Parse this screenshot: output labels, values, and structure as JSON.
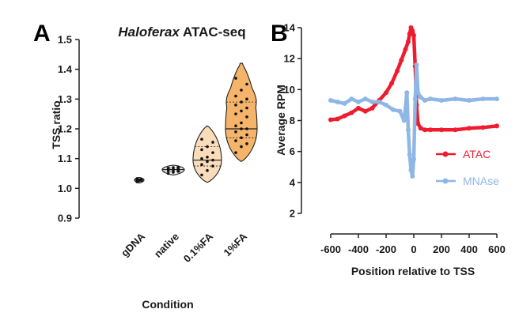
{
  "chart_data": [
    {
      "panel": "A",
      "type": "violin",
      "title": "Haloferax ATAC-seq",
      "title_italic_part": "Haloferax",
      "title_rest": " ATAC-seq",
      "xlabel": "Condition",
      "ylabel": "TSS ratio",
      "ylim": [
        0.9,
        1.5
      ],
      "yticks": [
        "0.9",
        "1.0",
        "1.1",
        "1.2",
        "1.3",
        "1.4",
        "1.5"
      ],
      "categories": [
        "gDNA",
        "native",
        "0.1%FA",
        "1%FA"
      ],
      "colors": [
        "#ffffff",
        "#f2f2f2",
        "#f9dcba",
        "#f5b46a"
      ],
      "violins": [
        {
          "min": 1.018,
          "max": 1.037,
          "median": 1.028,
          "q1": 1.024,
          "q3": 1.031,
          "points": [
            1.022,
            1.025,
            1.027,
            1.028,
            1.029,
            1.031,
            1.033
          ]
        },
        {
          "min": 1.045,
          "max": 1.078,
          "median": 1.063,
          "q1": 1.056,
          "q3": 1.068,
          "points": [
            1.05,
            1.054,
            1.057,
            1.059,
            1.061,
            1.062,
            1.064,
            1.065,
            1.067,
            1.068,
            1.07,
            1.072
          ]
        },
        {
          "min": 1.02,
          "max": 1.21,
          "median": 1.095,
          "q1": 1.075,
          "q3": 1.14,
          "points": [
            1.045,
            1.06,
            1.075,
            1.08,
            1.09,
            1.095,
            1.1,
            1.105,
            1.12,
            1.13,
            1.14,
            1.155,
            1.165
          ]
        },
        {
          "min": 1.09,
          "max": 1.42,
          "median": 1.2,
          "q1": 1.17,
          "q3": 1.29,
          "points": [
            1.12,
            1.14,
            1.15,
            1.16,
            1.17,
            1.18,
            1.19,
            1.2,
            1.2,
            1.21,
            1.22,
            1.24,
            1.25,
            1.26,
            1.27,
            1.28,
            1.29,
            1.3,
            1.31,
            1.33,
            1.35,
            1.37
          ]
        }
      ]
    },
    {
      "panel": "B",
      "type": "line",
      "xlabel": "Position relative to TSS",
      "ylabel": "Average RPM",
      "xlim": [
        -600,
        600
      ],
      "ylim": [
        2,
        14
      ],
      "xticks": [
        "-600",
        "-400",
        "-200",
        "0",
        "200",
        "400",
        "600"
      ],
      "yticks": [
        "2",
        "4",
        "6",
        "8",
        "10",
        "12",
        "14"
      ],
      "series": [
        {
          "name": "ATAC",
          "color": "#ee1c2e",
          "x": [
            -600,
            -550,
            -500,
            -450,
            -400,
            -350,
            -300,
            -250,
            -200,
            -160,
            -120,
            -90,
            -60,
            -40,
            -30,
            -20,
            -10,
            0,
            10,
            20,
            30,
            50,
            80,
            120,
            200,
            300,
            400,
            500,
            600
          ],
          "y": [
            8.05,
            8.1,
            8.3,
            8.5,
            8.8,
            8.6,
            8.8,
            9.3,
            9.8,
            10.4,
            11.2,
            11.9,
            12.6,
            13.1,
            13.6,
            14.0,
            13.8,
            13.5,
            11.5,
            9.0,
            7.8,
            7.5,
            7.4,
            7.4,
            7.4,
            7.4,
            7.5,
            7.55,
            7.65
          ]
        },
        {
          "name": "MNAse",
          "color": "#8fb7e6",
          "x": [
            -600,
            -550,
            -500,
            -450,
            -400,
            -350,
            -300,
            -250,
            -200,
            -150,
            -100,
            -70,
            -50,
            -40,
            -30,
            -20,
            -10,
            0,
            10,
            20,
            30,
            50,
            80,
            120,
            200,
            300,
            400,
            500,
            600
          ],
          "y": [
            9.3,
            9.2,
            9.1,
            9.4,
            9.2,
            9.4,
            9.2,
            9.2,
            9.0,
            8.7,
            8.6,
            8.0,
            9.8,
            7.4,
            5.8,
            4.8,
            4.4,
            5.5,
            9.4,
            11.6,
            9.8,
            9.5,
            9.3,
            9.4,
            9.3,
            9.4,
            9.3,
            9.4,
            9.4
          ]
        }
      ]
    }
  ]
}
